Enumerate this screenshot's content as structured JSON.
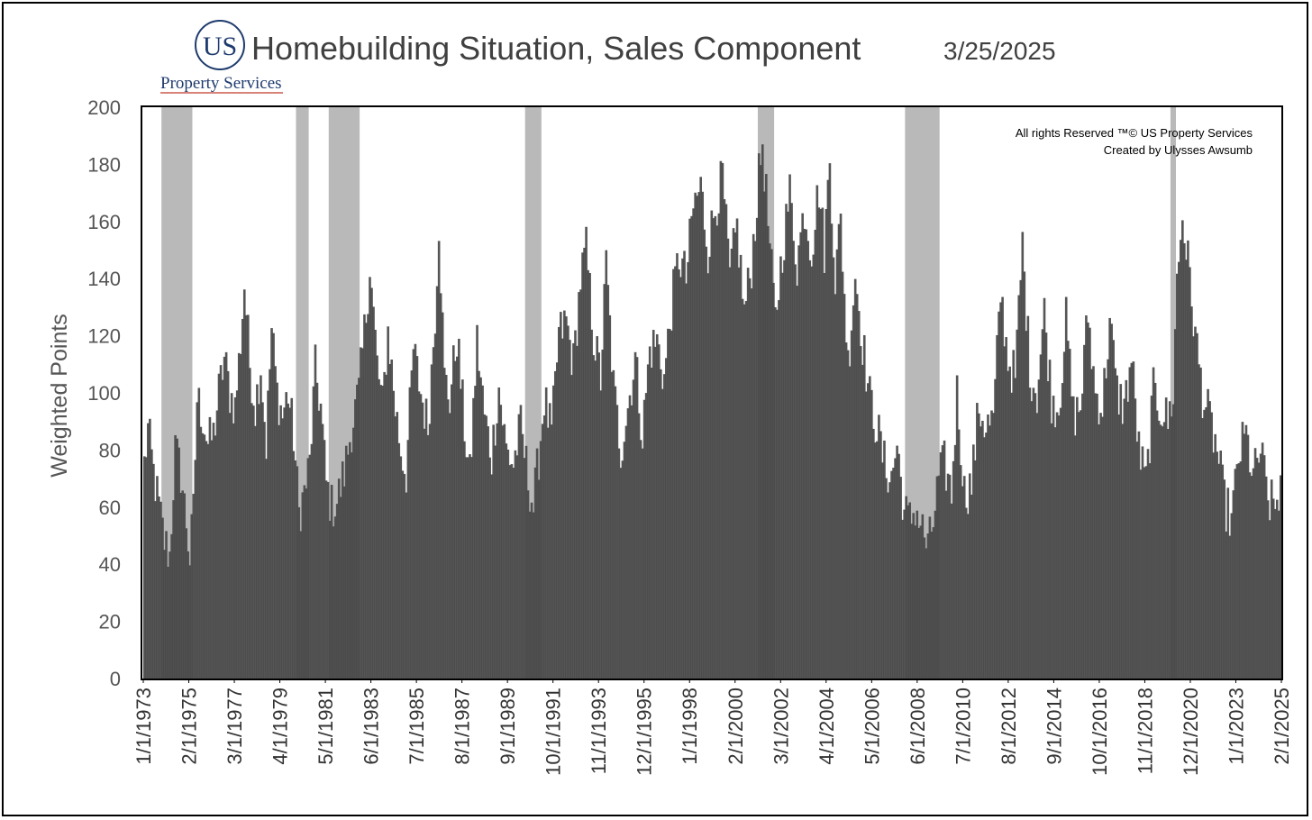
{
  "header": {
    "logo_initials": "US",
    "logo_company": "Property Services",
    "title": "Homebuilding Situation, Sales Component",
    "date": "3/25/2025"
  },
  "credits": {
    "line1": "All rights Reserved ™© US Property Services",
    "line2": "Created by Ulysses Awsumb"
  },
  "colors": {
    "bar": "#474747",
    "recession_shade": "#b9b9b9",
    "title": "#404040",
    "logo": "#1f3b6e",
    "logo_rule": "#c0392b"
  },
  "chart_data": {
    "type": "bar",
    "title": "Homebuilding Situation, Sales Component",
    "ylabel": "Weighted Points",
    "xlabel": "",
    "ylim": [
      0,
      200
    ],
    "yticks": [
      0,
      20,
      40,
      60,
      80,
      100,
      120,
      140,
      160,
      180,
      200
    ],
    "x_range": [
      "1973-01",
      "2025-02"
    ],
    "frequency": "monthly",
    "xtick_labels": [
      "1/1/1973",
      "2/1/1975",
      "3/1/1977",
      "4/1/1979",
      "5/1/1981",
      "6/1/1983",
      "7/1/1985",
      "8/1/1987",
      "9/1/1989",
      "10/1/1991",
      "11/1/1993",
      "12/1/1995",
      "1/1/1998",
      "2/1/2000",
      "3/1/2002",
      "4/1/2004",
      "5/1/2006",
      "6/1/2008",
      "7/1/2010",
      "8/1/2012",
      "9/1/2014",
      "10/1/2016",
      "11/1/2018",
      "12/1/2020",
      "1/1/2023",
      "2/1/2025"
    ],
    "recessions": [
      {
        "start": "1973-11",
        "end": "1975-03"
      },
      {
        "start": "1980-01",
        "end": "1980-07"
      },
      {
        "start": "1981-07",
        "end": "1982-11"
      },
      {
        "start": "1990-07",
        "end": "1991-03"
      },
      {
        "start": "2001-03",
        "end": "2001-11"
      },
      {
        "start": "2007-12",
        "end": "2009-06"
      },
      {
        "start": "2020-02",
        "end": "2020-04"
      }
    ],
    "series": [
      {
        "monthly_anchor_values": [
          [
            "1973-01",
            75
          ],
          [
            "1973-03",
            87
          ],
          [
            "1973-06",
            72
          ],
          [
            "1973-09",
            60
          ],
          [
            "1973-12",
            48
          ],
          [
            "1974-03",
            43
          ],
          [
            "1974-06",
            80
          ],
          [
            "1974-09",
            72
          ],
          [
            "1974-12",
            55
          ],
          [
            "1975-02",
            42
          ],
          [
            "1975-04",
            58
          ],
          [
            "1975-06",
            98
          ],
          [
            "1975-09",
            92
          ],
          [
            "1975-12",
            82
          ],
          [
            "1976-03",
            85
          ],
          [
            "1976-06",
            100
          ],
          [
            "1976-09",
            112
          ],
          [
            "1976-12",
            100
          ],
          [
            "1977-03",
            95
          ],
          [
            "1977-06",
            118
          ],
          [
            "1977-08",
            138
          ],
          [
            "1977-11",
            110
          ],
          [
            "1978-02",
            95
          ],
          [
            "1978-05",
            110
          ],
          [
            "1978-08",
            82
          ],
          [
            "1978-11",
            122
          ],
          [
            "1979-02",
            100
          ],
          [
            "1979-05",
            92
          ],
          [
            "1979-08",
            100
          ],
          [
            "1979-11",
            85
          ],
          [
            "1980-02",
            58
          ],
          [
            "1980-05",
            65
          ],
          [
            "1980-08",
            75
          ],
          [
            "1980-11",
            108
          ],
          [
            "1981-02",
            95
          ],
          [
            "1981-05",
            68
          ],
          [
            "1981-08",
            60
          ],
          [
            "1981-11",
            62
          ],
          [
            "1982-03",
            72
          ],
          [
            "1982-07",
            88
          ],
          [
            "1982-11",
            100
          ],
          [
            "1983-03",
            128
          ],
          [
            "1983-05",
            145
          ],
          [
            "1983-09",
            110
          ],
          [
            "1983-12",
            95
          ],
          [
            "1984-03",
            122
          ],
          [
            "1984-07",
            95
          ],
          [
            "1984-10",
            80
          ],
          [
            "1985-01",
            72
          ],
          [
            "1985-05",
            115
          ],
          [
            "1985-09",
            100
          ],
          [
            "1986-01",
            88
          ],
          [
            "1986-05",
            128
          ],
          [
            "1986-07",
            160
          ],
          [
            "1986-10",
            105
          ],
          [
            "1987-01",
            98
          ],
          [
            "1987-05",
            120
          ],
          [
            "1987-09",
            88
          ],
          [
            "1987-12",
            70
          ],
          [
            "1988-04",
            118
          ],
          [
            "1988-08",
            92
          ],
          [
            "1988-12",
            78
          ],
          [
            "1989-04",
            102
          ],
          [
            "1989-08",
            80
          ],
          [
            "1989-12",
            75
          ],
          [
            "1990-04",
            88
          ],
          [
            "1990-08",
            70
          ],
          [
            "1990-11",
            60
          ],
          [
            "1991-02",
            78
          ],
          [
            "1991-05",
            98
          ],
          [
            "1991-09",
            85
          ],
          [
            "1992-01",
            120
          ],
          [
            "1992-05",
            125
          ],
          [
            "1992-09",
            110
          ],
          [
            "1993-01",
            140
          ],
          [
            "1993-04",
            150
          ],
          [
            "1993-08",
            120
          ],
          [
            "1993-12",
            105
          ],
          [
            "1994-03",
            145
          ],
          [
            "1994-07",
            102
          ],
          [
            "1994-11",
            80
          ],
          [
            "1995-03",
            95
          ],
          [
            "1995-07",
            112
          ],
          [
            "1995-11",
            85
          ],
          [
            "1996-03",
            115
          ],
          [
            "1996-07",
            118
          ],
          [
            "1996-11",
            105
          ],
          [
            "1997-03",
            130
          ],
          [
            "1997-07",
            148
          ],
          [
            "1997-11",
            140
          ],
          [
            "1998-03",
            165
          ],
          [
            "1998-07",
            172
          ],
          [
            "1998-11",
            150
          ],
          [
            "1999-03",
            165
          ],
          [
            "1999-07",
            175
          ],
          [
            "1999-11",
            140
          ],
          [
            "2000-03",
            158
          ],
          [
            "2000-07",
            128
          ],
          [
            "2000-11",
            145
          ],
          [
            "2001-03",
            175
          ],
          [
            "2001-05",
            188
          ],
          [
            "2001-09",
            150
          ],
          [
            "2001-12",
            125
          ],
          [
            "2002-04",
            150
          ],
          [
            "2002-08",
            170
          ],
          [
            "2002-12",
            145
          ],
          [
            "2003-04",
            165
          ],
          [
            "2003-08",
            150
          ],
          [
            "2003-12",
            172
          ],
          [
            "2004-03",
            150
          ],
          [
            "2004-06",
            182
          ],
          [
            "2004-09",
            140
          ],
          [
            "2004-12",
            160
          ],
          [
            "2005-04",
            110
          ],
          [
            "2005-08",
            142
          ],
          [
            "2005-12",
            118
          ],
          [
            "2006-04",
            98
          ],
          [
            "2006-08",
            88
          ],
          [
            "2006-12",
            75
          ],
          [
            "2007-04",
            70
          ],
          [
            "2007-07",
            82
          ],
          [
            "2007-11",
            58
          ],
          [
            "2008-02",
            55
          ],
          [
            "2008-05",
            60
          ],
          [
            "2008-09",
            52
          ],
          [
            "2008-12",
            45
          ],
          [
            "2009-03",
            55
          ],
          [
            "2009-06",
            70
          ],
          [
            "2009-09",
            75
          ],
          [
            "2010-01",
            65
          ],
          [
            "2010-04",
            100
          ],
          [
            "2010-08",
            65
          ],
          [
            "2010-12",
            68
          ],
          [
            "2011-04",
            95
          ],
          [
            "2011-08",
            88
          ],
          [
            "2011-12",
            90
          ],
          [
            "2012-04",
            135
          ],
          [
            "2012-08",
            112
          ],
          [
            "2012-12",
            105
          ],
          [
            "2013-04",
            152
          ],
          [
            "2013-08",
            108
          ],
          [
            "2013-12",
            100
          ],
          [
            "2014-04",
            128
          ],
          [
            "2014-08",
            98
          ],
          [
            "2014-12",
            95
          ],
          [
            "2015-04",
            125
          ],
          [
            "2015-08",
            92
          ],
          [
            "2015-12",
            95
          ],
          [
            "2016-04",
            128
          ],
          [
            "2016-08",
            100
          ],
          [
            "2016-12",
            95
          ],
          [
            "2017-04",
            125
          ],
          [
            "2017-08",
            100
          ],
          [
            "2017-12",
            95
          ],
          [
            "2018-04",
            112
          ],
          [
            "2018-08",
            80
          ],
          [
            "2018-12",
            68
          ],
          [
            "2019-04",
            100
          ],
          [
            "2019-08",
            95
          ],
          [
            "2019-12",
            90
          ],
          [
            "2020-03",
            100
          ],
          [
            "2020-05",
            140
          ],
          [
            "2020-08",
            162
          ],
          [
            "2020-12",
            140
          ],
          [
            "2021-03",
            120
          ],
          [
            "2021-07",
            100
          ],
          [
            "2021-11",
            90
          ],
          [
            "2022-03",
            80
          ],
          [
            "2022-07",
            62
          ],
          [
            "2022-11",
            55
          ],
          [
            "2023-03",
            78
          ],
          [
            "2023-07",
            85
          ],
          [
            "2023-11",
            70
          ],
          [
            "2024-03",
            80
          ],
          [
            "2024-07",
            62
          ],
          [
            "2024-11",
            60
          ],
          [
            "2025-02",
            68
          ]
        ]
      }
    ]
  }
}
